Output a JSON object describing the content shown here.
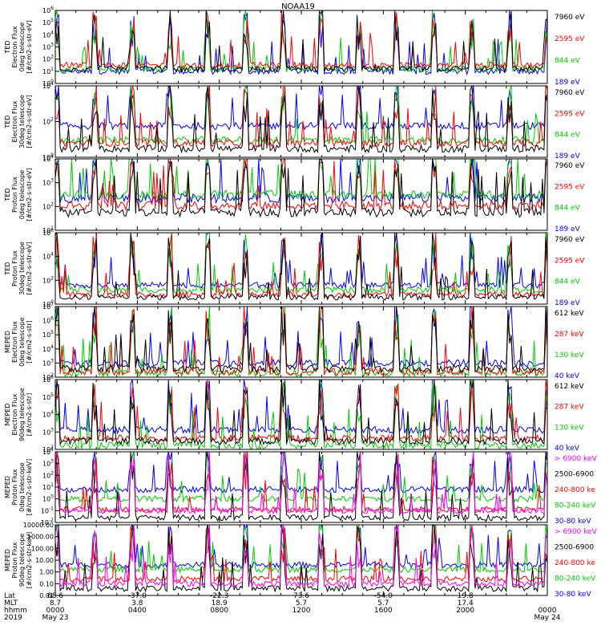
{
  "chart_data": {
    "type": "line",
    "title": "NOAA19",
    "panels": [
      {
        "id": "ted-e-0",
        "ylabel": [
          "TED",
          "Electron Flux",
          "0deg telescope",
          "[#/cm2-s-str-eV]"
        ],
        "log": true,
        "ylim_exp": [
          0,
          6
        ],
        "ticks": [
          {
            "text": "10",
            "exp": "0"
          },
          {
            "text": "10",
            "exp": "1"
          },
          {
            "text": "10",
            "exp": "2"
          },
          {
            "text": "10",
            "exp": "3"
          },
          {
            "text": "10",
            "exp": "4"
          },
          {
            "text": "10",
            "exp": "5"
          },
          {
            "text": "10",
            "exp": "6"
          }
        ],
        "legend": [
          {
            "text": "7960 eV",
            "color": "#000000"
          },
          {
            "text": "2595 eV",
            "color": "#ff0000"
          },
          {
            "text": "844 eV",
            "color": "#00cc00"
          },
          {
            "text": "189 eV",
            "color": "#0000ff"
          }
        ],
        "series_levels_exp": {
          "#0000ff": 1.0,
          "#00cc00": 1.2,
          "#ff0000": 1.5,
          "#000000": 1.2
        }
      },
      {
        "id": "ted-e-30",
        "ylabel": [
          "TED",
          "Electron Flux",
          "30deg telescope",
          "[#/cm2-s-str-eV]"
        ],
        "log": true,
        "ylim_exp": [
          0,
          5
        ],
        "ticks": [
          {
            "text": "10",
            "exp": "0"
          },
          {
            "text": "10",
            "exp": "2"
          },
          {
            "text": "10",
            "exp": "4"
          }
        ],
        "legend": [
          {
            "text": "7960 eV",
            "color": "#000000"
          },
          {
            "text": "2595 eV",
            "color": "#ff0000"
          },
          {
            "text": "844 eV",
            "color": "#00cc00"
          },
          {
            "text": "189 eV",
            "color": "#0000ff"
          }
        ],
        "series_levels_exp": {
          "#0000ff": 2.2,
          "#00cc00": 1.2,
          "#ff0000": 1.0,
          "#000000": 0.6
        }
      },
      {
        "id": "ted-p-0",
        "ylabel": [
          "TED",
          "Proton Flux",
          "0deg telescope",
          "[#/cm2-s-str-eV]"
        ],
        "log": true,
        "ylim_exp": [
          0,
          4
        ],
        "ticks": [
          {
            "text": "10",
            "exp": "1"
          },
          {
            "text": "10",
            "exp": "2"
          },
          {
            "text": "10",
            "exp": "3"
          },
          {
            "text": "10",
            "exp": "4"
          }
        ],
        "legend": [
          {
            "text": "7960 eV",
            "color": "#000000"
          },
          {
            "text": "2595 eV",
            "color": "#ff0000"
          },
          {
            "text": "844 eV",
            "color": "#00cc00"
          },
          {
            "text": "189 eV",
            "color": "#0000ff"
          }
        ],
        "series_levels_exp": {
          "#0000ff": 1.8,
          "#00cc00": 2.0,
          "#ff0000": 1.4,
          "#000000": 1.0
        }
      },
      {
        "id": "ted-p-30",
        "ylabel": [
          "TED",
          "Proton Flux",
          "30deg telescope",
          "[#/cm2-s-str-eV]"
        ],
        "log": true,
        "ylim_exp": [
          0,
          6
        ],
        "ticks": [
          {
            "text": "10",
            "exp": "0"
          },
          {
            "text": "10",
            "exp": "2"
          },
          {
            "text": "10",
            "exp": "4"
          },
          {
            "text": "10",
            "exp": "6"
          }
        ],
        "legend": [
          {
            "text": "7960 eV",
            "color": "#000000"
          },
          {
            "text": "2595 eV",
            "color": "#ff0000"
          },
          {
            "text": "844 eV",
            "color": "#00cc00"
          },
          {
            "text": "189 eV",
            "color": "#0000ff"
          }
        ],
        "series_levels_exp": {
          "#0000ff": 1.6,
          "#00cc00": 1.2,
          "#ff0000": 0.8,
          "#000000": 0.6
        }
      },
      {
        "id": "meped-e-0",
        "ylabel": [
          "MEPED",
          "Electron Flux",
          "0deg telescope",
          "[#/cm2-s-str]"
        ],
        "log": true,
        "ylim_exp": [
          2,
          7
        ],
        "ticks": [
          {
            "text": "10",
            "exp": "2"
          },
          {
            "text": "10",
            "exp": "3"
          },
          {
            "text": "10",
            "exp": "4"
          },
          {
            "text": "10",
            "exp": "5"
          },
          {
            "text": "10",
            "exp": "6"
          },
          {
            "text": "10",
            "exp": "7"
          }
        ],
        "legend": [
          {
            "text": "612 keV",
            "color": "#000000"
          },
          {
            "text": "287 keV",
            "color": "#ff0000"
          },
          {
            "text": "130 keV",
            "color": "#00cc00"
          },
          {
            "text": "40 keV",
            "color": "#0000ff"
          }
        ],
        "series_levels_exp": {
          "#0000ff": 3.0,
          "#00cc00": 2.3,
          "#ff0000": 2.4,
          "#000000": 2.6
        }
      },
      {
        "id": "meped-e-90",
        "ylabel": [
          "MEPED",
          "Electron Flux",
          "90deg telescope",
          "[#/cm2-s-str]"
        ],
        "log": true,
        "ylim_exp": [
          2,
          7
        ],
        "ticks": [
          {
            "text": "10",
            "exp": "2"
          },
          {
            "text": "10",
            "exp": "3"
          },
          {
            "text": "10",
            "exp": "4"
          },
          {
            "text": "10",
            "exp": "5"
          },
          {
            "text": "10",
            "exp": "6"
          }
        ],
        "legend": [
          {
            "text": "612 keV",
            "color": "#000000"
          },
          {
            "text": "287 keV",
            "color": "#ff0000"
          },
          {
            "text": "130 keV",
            "color": "#00cc00"
          },
          {
            "text": "40 keV",
            "color": "#0000ff"
          }
        ],
        "series_levels_exp": {
          "#0000ff": 3.4,
          "#00cc00": 2.3,
          "#ff0000": 2.8,
          "#000000": 2.6
        }
      },
      {
        "id": "meped-p-0",
        "ylabel": [
          "MEPED",
          "Proton Flux",
          "0deg telescope",
          "[#/cm2-s-str-keV]"
        ],
        "log": true,
        "ylim_exp": [
          -2,
          4
        ],
        "ticks": [
          {
            "text": "10",
            "exp": "-2"
          },
          {
            "text": "10",
            "exp": "-1"
          },
          {
            "text": "10",
            "exp": "0"
          },
          {
            "text": "10",
            "exp": "1"
          },
          {
            "text": "10",
            "exp": "2"
          },
          {
            "text": "10",
            "exp": "3"
          },
          {
            "text": "10",
            "exp": "4"
          }
        ],
        "legend": [
          {
            "text": "> 6900 keV",
            "color": "#ff00ff"
          },
          {
            "text": "2500-6900",
            "color": "#000000"
          },
          {
            "text": "240-800 ke",
            "color": "#ff0000"
          },
          {
            "text": "80-240 keV",
            "color": "#00cc00"
          },
          {
            "text": "30-80 keV",
            "color": "#0000ff"
          }
        ],
        "series_levels_exp": {
          "#0000ff": 0.8,
          "#00cc00": 0.0,
          "#ff0000": -0.9,
          "#000000": -1.6,
          "#ff00ff": -1.0
        }
      },
      {
        "id": "meped-p-90",
        "ylabel": [
          "MEPED",
          "Proton Flux",
          "90deg telescope",
          "[#/cm2-s-str-keV]"
        ],
        "log": true,
        "ylim_exp": [
          -2,
          4
        ],
        "ticks": [
          {
            "text": "0.01"
          },
          {
            "text": "0.10"
          },
          {
            "text": "1.00"
          },
          {
            "text": "10.00"
          },
          {
            "text": "100.00"
          },
          {
            "text": "1000.00"
          },
          {
            "text": "10000.00"
          }
        ],
        "legend": [
          {
            "text": "> 6900 keV",
            "color": "#ff00ff"
          },
          {
            "text": "2500-6900",
            "color": "#000000"
          },
          {
            "text": "240-800 ke",
            "color": "#ff0000"
          },
          {
            "text": "80-240 keV",
            "color": "#00cc00"
          },
          {
            "text": "30-80 keV",
            "color": "#0000ff"
          }
        ],
        "series_levels_exp": {
          "#0000ff": 0.6,
          "#00cc00": 0.2,
          "#ff0000": -0.6,
          "#000000": -1.4,
          "#ff00ff": -1.0
        }
      }
    ],
    "x_axis": {
      "row_labels": [
        "Lat",
        "MLT",
        "hhmm",
        "2019"
      ],
      "columns": [
        {
          "lat": "68.6",
          "mlt": "8.7",
          "hhmm": "0000",
          "date": "May 23"
        },
        {
          "lat": "-37.0",
          "mlt": "3.8",
          "hhmm": "0400",
          "date": ""
        },
        {
          "lat": "-22.3",
          "mlt": "18.9",
          "hhmm": "0800",
          "date": ""
        },
        {
          "lat": "73.6",
          "mlt": "5.7",
          "hhmm": "1200",
          "date": ""
        },
        {
          "lat": "-54.0",
          "mlt": "5.7",
          "hhmm": "1600",
          "date": ""
        },
        {
          "lat": "19.8",
          "mlt": "17.4",
          "hhmm": "2000",
          "date": ""
        },
        {
          "lat": "",
          "mlt": "",
          "hhmm": "0000",
          "date": "May 24"
        }
      ]
    }
  }
}
